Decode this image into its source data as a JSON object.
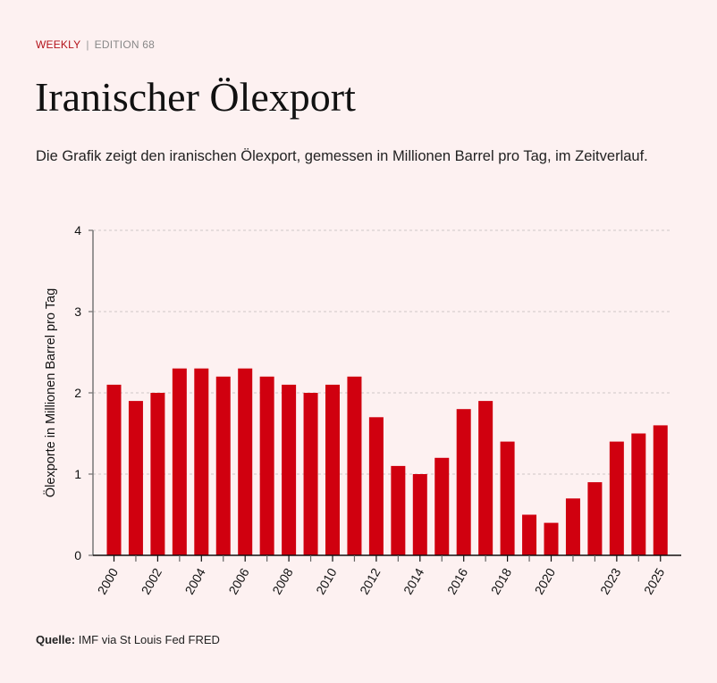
{
  "header": {
    "kicker": "WEEKLY",
    "separator": "|",
    "edition": "EDITION 68",
    "title": "Iranischer Ölexport",
    "subtitle": "Die Grafik zeigt den iranischen Ölexport, gemessen in Millionen Barrel pro Tag, im Zeitverlauf."
  },
  "footer": {
    "source_label": "Quelle:",
    "source_text": "IMF via St Louis Fed FRED"
  },
  "colors": {
    "background": "#fdf1f1",
    "bar": "#d0000f",
    "accent": "#b3121a"
  },
  "chart_data": {
    "type": "bar",
    "title": "Iranischer Ölexport",
    "xlabel": "",
    "ylabel": "Ölexporte in Millionen Barrel pro Tag",
    "ylim": [
      0,
      4
    ],
    "yticks": [
      0,
      1,
      2,
      3,
      4
    ],
    "grid": true,
    "categories": [
      "2000",
      "2001",
      "2002",
      "2003",
      "2004",
      "2005",
      "2006",
      "2007",
      "2008",
      "2009",
      "2010",
      "2011",
      "2012",
      "2013",
      "2014",
      "2015",
      "2016",
      "2017",
      "2018",
      "2019",
      "2020",
      "2021",
      "2022",
      "2023",
      "2024",
      "2025"
    ],
    "values": [
      2.1,
      1.9,
      2.0,
      2.3,
      2.3,
      2.2,
      2.3,
      2.2,
      2.1,
      2.0,
      2.1,
      2.2,
      1.7,
      1.1,
      1.0,
      1.2,
      1.8,
      1.9,
      1.4,
      0.5,
      0.4,
      0.7,
      0.9,
      1.4,
      1.5,
      1.6
    ],
    "xtick_labels": [
      "2000",
      "2002",
      "2004",
      "2006",
      "2008",
      "2010",
      "2012",
      "2014",
      "2016",
      "2018",
      "2020",
      "2023",
      "2025"
    ]
  }
}
